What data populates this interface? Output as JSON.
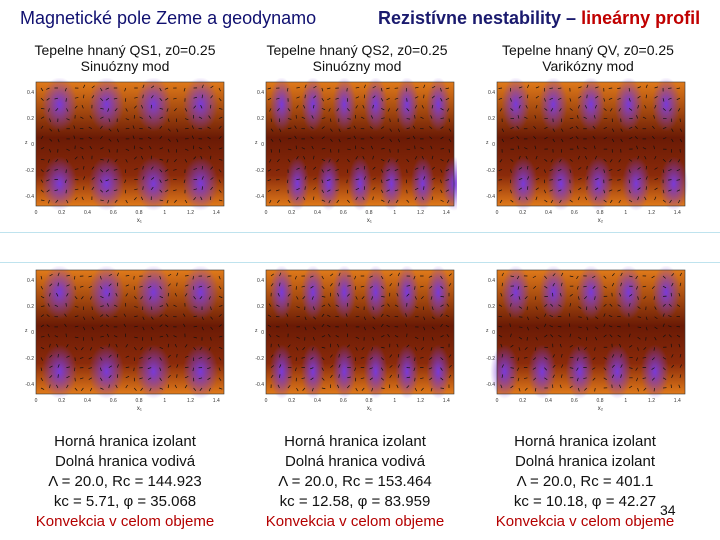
{
  "header": {
    "left_title": "Magnetické pole Zeme a geodynamo",
    "right_title_main": "Rezistívne nestability –",
    "right_title_accent": "lineárny profil"
  },
  "columns": [
    {
      "caption_line1": "Tepelne hnaný QS1, z0=0.25",
      "caption_line2": "Sinuózny mod",
      "info": [
        "Horná hranica izolant",
        "Dolná hranica vodivá",
        "Λ = 20.0, Rc = 144.923",
        "kc = 5.71, φ = 35.068"
      ],
      "info_red": "Konvekcia v celom objeme"
    },
    {
      "caption_line1": "Tepelne hnaný QS2, z0=0.25",
      "caption_line2": "Sinuózny mod",
      "info": [
        "Horná hranica izolant",
        "Dolná hranica vodivá",
        "Λ = 20.0, Rc = 153.464",
        "kc = 12.58, φ = 83.959"
      ],
      "info_red": "Konvekcia v celom objeme"
    },
    {
      "caption_line1": "Tepelne hnaný QV, z0=0.25",
      "caption_line2": "Varikózny mod",
      "info": [
        "Horná hranica izolant",
        "Dolná hranica izolant",
        "Λ = 20.0, Rc = 401.1",
        "kc = 10.18, φ = 42.27"
      ],
      "info_red": "Konvekcia v celom objeme"
    }
  ],
  "plot_axes": {
    "x_ticks": [
      "0",
      "0.2",
      "0.4",
      "0.6",
      "0.8",
      "1",
      "1.2",
      "1.4"
    ],
    "y_ticks": [
      "0.4",
      "0.2",
      "0",
      "-0.2",
      "-0.4"
    ],
    "x_labels": [
      "x₁",
      "x₁",
      "x₂"
    ],
    "y_label": "z"
  },
  "slide_number": "34",
  "colors": {
    "header_blue": "#101070",
    "accent_red": "#c00000",
    "field_dark": "#6a1a05",
    "field_orange": "#e07a1a",
    "field_purple": "#7a3ad8"
  }
}
